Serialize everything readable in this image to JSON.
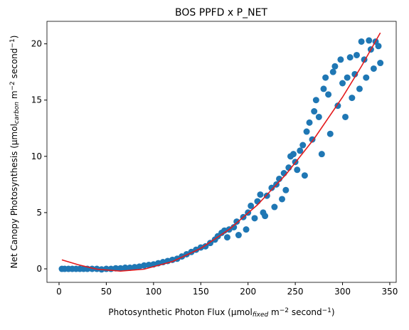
{
  "chart_data": {
    "type": "scatter",
    "title": "BOS PPFD x P_NET",
    "xlabel": [
      {
        "text": "Photosynthetic Photon Flux (µmol",
        "style": "normal"
      },
      {
        "text": "fixed",
        "style": "sub"
      },
      {
        "text": " m",
        "style": "normal"
      },
      {
        "text": "−2",
        "style": "sup"
      },
      {
        "text": " second",
        "style": "normal"
      },
      {
        "text": "−1",
        "style": "sup"
      },
      {
        "text": ")",
        "style": "normal"
      }
    ],
    "ylabel": [
      {
        "text": "Net Canopy Photosynthesis (µmol",
        "style": "normal"
      },
      {
        "text": "carbon",
        "style": "sub"
      },
      {
        "text": " m",
        "style": "normal"
      },
      {
        "text": "−2",
        "style": "sup"
      },
      {
        "text": " second",
        "style": "normal"
      },
      {
        "text": "−1",
        "style": "sup"
      },
      {
        "text": ")",
        "style": "normal"
      }
    ],
    "xlim": [
      -12.8,
      356.8
    ],
    "xticks": [
      0,
      50,
      100,
      150,
      200,
      250,
      300,
      350
    ],
    "ylim": [
      -1.2,
      22
    ],
    "yticks": [
      0,
      5,
      10,
      15,
      20
    ],
    "points": {
      "color": "#1f77b4",
      "x": [
        3,
        6,
        10,
        14,
        18,
        22,
        26,
        30,
        35,
        40,
        45,
        50,
        55,
        60,
        65,
        70,
        75,
        80,
        85,
        90,
        95,
        100,
        105,
        110,
        115,
        120,
        125,
        130,
        135,
        140,
        145,
        150,
        155,
        160,
        165,
        168,
        172,
        175,
        178,
        180,
        185,
        188,
        190,
        195,
        198,
        200,
        203,
        207,
        210,
        213,
        216,
        218,
        220,
        225,
        228,
        230,
        233,
        236,
        238,
        240,
        243,
        245,
        248,
        250,
        252,
        255,
        258,
        260,
        262,
        265,
        268,
        270,
        272,
        275,
        278,
        280,
        282,
        285,
        287,
        290,
        292,
        295,
        298,
        300,
        303,
        305,
        308,
        310,
        313,
        315,
        318,
        320,
        323,
        325,
        328,
        330,
        333,
        335,
        338,
        340
      ],
      "y": [
        0,
        0,
        0,
        0,
        0,
        0,
        0,
        0,
        0,
        0,
        -0.05,
        0,
        0,
        0.05,
        0.05,
        0.1,
        0.1,
        0.15,
        0.2,
        0.3,
        0.35,
        0.4,
        0.5,
        0.6,
        0.7,
        0.8,
        0.9,
        1.1,
        1.3,
        1.5,
        1.7,
        1.9,
        2.0,
        2.3,
        2.6,
        2.9,
        3.2,
        3.4,
        2.8,
        3.5,
        3.7,
        4.2,
        3.0,
        4.6,
        3.5,
        5.0,
        5.6,
        4.5,
        6.0,
        6.6,
        5.0,
        4.7,
        6.5,
        7.2,
        5.5,
        7.5,
        8.0,
        6.2,
        8.5,
        7.0,
        9.0,
        10.0,
        10.2,
        9.5,
        8.8,
        10.5,
        11.0,
        8.3,
        12.2,
        13.0,
        11.5,
        14.0,
        15.0,
        13.5,
        10.2,
        16.0,
        17.0,
        15.5,
        12.0,
        17.5,
        18.0,
        14.5,
        18.6,
        16.5,
        13.5,
        17.0,
        18.8,
        15.2,
        17.3,
        19.0,
        16.0,
        20.2,
        18.6,
        17.0,
        20.3,
        19.5,
        17.8,
        20.2,
        19.8,
        18.3
      ]
    },
    "fit": {
      "color": "#e41a1c",
      "x": [
        3,
        20,
        40,
        65,
        90,
        120,
        150,
        180,
        210,
        240,
        270,
        300,
        320,
        340
      ],
      "y": [
        0.8,
        0.37,
        -0.03,
        -0.2,
        -0.03,
        0.65,
        1.82,
        3.5,
        5.69,
        8.38,
        11.57,
        15.26,
        18.0,
        20.98
      ]
    }
  }
}
